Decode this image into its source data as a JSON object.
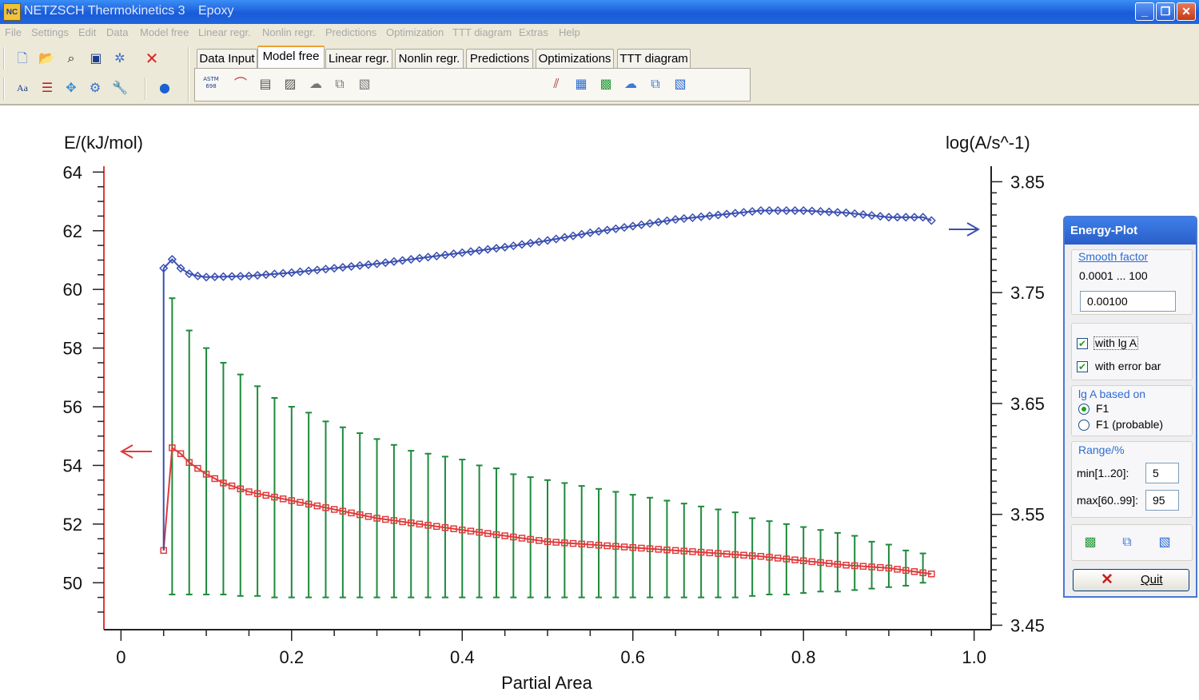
{
  "window": {
    "title": "NETZSCH Thermokinetics 3",
    "project": "Epoxy",
    "app_icon": "ntk-app-icon"
  },
  "menu": [
    "File",
    "Settings",
    "Edit",
    "Data",
    "Model free",
    "Linear regr.",
    "Nonlin regr.",
    "Predictions",
    "Optimization",
    "TTT diagram",
    "Extras",
    "Help"
  ],
  "toolbar": {
    "tabs": [
      "Data Input",
      "Model free",
      "Linear regr.",
      "Nonlin regr.",
      "Predictions",
      "Optimizations",
      "TTT diagram"
    ],
    "active_tab": "Model free",
    "astm_label": "ASTM 698",
    "font_label": "Aa"
  },
  "panel": {
    "title": "Energy-Plot",
    "smooth_title": "Smooth factor",
    "smooth_range": "0.0001 ... 100",
    "smooth_value": "0.00100",
    "with_lgA": "with lg A",
    "with_error_bar": "with error bar",
    "lgA_title": "lg A based on",
    "radio_f1": "F1",
    "radio_f1_probable": "F1  (probable)",
    "range_title": "Range/%",
    "min_label": "min[1..20]:",
    "min_value": "5",
    "max_label": "max[60..99]:",
    "max_value": "95",
    "quit_label": "Quit"
  },
  "chart_data": {
    "type": "line",
    "xlabel": "Partial Area",
    "ylabel": "E/(kJ/mol)",
    "y2label": "log(A/s^-1)",
    "xlim": [
      -0.02,
      1.02
    ],
    "ylim": [
      48.4,
      64.2
    ],
    "y2lim": [
      3.446,
      3.864
    ],
    "xticks": [
      "0",
      "0.2",
      "0.4",
      "0.6",
      "0.8",
      "1.0"
    ],
    "yticks": [
      "50",
      "52",
      "54",
      "56",
      "58",
      "60",
      "62",
      "64"
    ],
    "y2ticks": [
      "3.45",
      "3.55",
      "3.65",
      "3.75",
      "3.85"
    ],
    "colors": {
      "E": "#e03a3a",
      "lgA": "#3a4fb0",
      "error_bar": "#1e8a3c"
    },
    "series": [
      {
        "name": "E",
        "x": [
          0.05,
          0.06,
          0.07,
          0.08,
          0.1,
          0.12,
          0.15,
          0.2,
          0.25,
          0.3,
          0.35,
          0.4,
          0.45,
          0.5,
          0.55,
          0.6,
          0.65,
          0.7,
          0.75,
          0.8,
          0.85,
          0.9,
          0.95
        ],
        "y": [
          51.1,
          54.6,
          54.4,
          54.1,
          53.7,
          53.4,
          53.1,
          52.8,
          52.5,
          52.2,
          52.0,
          51.8,
          51.6,
          51.4,
          51.3,
          51.2,
          51.1,
          51.0,
          50.9,
          50.75,
          50.6,
          50.5,
          50.3
        ]
      },
      {
        "name": "lg A",
        "x": [
          0.05,
          0.06,
          0.07,
          0.08,
          0.09,
          0.1,
          0.15,
          0.2,
          0.25,
          0.3,
          0.35,
          0.4,
          0.45,
          0.5,
          0.55,
          0.6,
          0.65,
          0.7,
          0.75,
          0.8,
          0.85,
          0.9,
          0.94,
          0.95
        ],
        "y": [
          3.772,
          3.78,
          3.772,
          3.767,
          3.765,
          3.764,
          3.765,
          3.768,
          3.772,
          3.776,
          3.781,
          3.786,
          3.791,
          3.797,
          3.804,
          3.81,
          3.816,
          3.82,
          3.824,
          3.824,
          3.822,
          3.818,
          3.818,
          3.815
        ]
      },
      {
        "name": "error bar",
        "x": [
          0.06,
          0.08,
          0.1,
          0.12,
          0.14,
          0.16,
          0.18,
          0.2,
          0.22,
          0.24,
          0.26,
          0.28,
          0.3,
          0.32,
          0.34,
          0.36,
          0.38,
          0.4,
          0.42,
          0.44,
          0.46,
          0.48,
          0.5,
          0.52,
          0.54,
          0.56,
          0.58,
          0.6,
          0.62,
          0.64,
          0.66,
          0.68,
          0.7,
          0.72,
          0.74,
          0.76,
          0.78,
          0.8,
          0.82,
          0.84,
          0.86,
          0.88,
          0.9,
          0.92,
          0.94
        ],
        "upper": [
          59.7,
          58.6,
          58.0,
          57.5,
          57.1,
          56.7,
          56.3,
          56.0,
          55.8,
          55.5,
          55.3,
          55.1,
          54.9,
          54.7,
          54.5,
          54.4,
          54.3,
          54.2,
          54.0,
          53.9,
          53.7,
          53.6,
          53.5,
          53.4,
          53.3,
          53.2,
          53.1,
          53.0,
          52.9,
          52.8,
          52.7,
          52.6,
          52.5,
          52.4,
          52.2,
          52.1,
          52.0,
          51.9,
          51.8,
          51.7,
          51.6,
          51.4,
          51.3,
          51.1,
          51.0
        ],
        "lower": [
          49.6,
          49.6,
          49.6,
          49.6,
          49.55,
          49.55,
          49.5,
          49.5,
          49.5,
          49.5,
          49.5,
          49.5,
          49.5,
          49.5,
          49.5,
          49.5,
          49.5,
          49.5,
          49.5,
          49.5,
          49.5,
          49.5,
          49.5,
          49.5,
          49.5,
          49.5,
          49.5,
          49.5,
          49.5,
          49.5,
          49.5,
          49.5,
          49.5,
          49.5,
          49.55,
          49.6,
          49.6,
          49.65,
          49.7,
          49.7,
          49.75,
          49.8,
          49.85,
          49.9,
          50.0
        ]
      }
    ]
  }
}
